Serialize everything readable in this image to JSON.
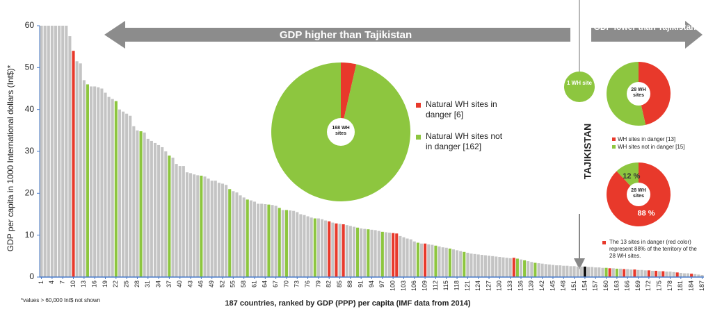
{
  "chart_data": [
    {
      "type": "bar",
      "y_label": "GDP per capita in 1000 International dollars (Int$)*",
      "x_label": "187 countries, ranked by GDP (PPP) per capita (IMF data from 2014)",
      "footnote": "*values > 60,000 Int$ not shown",
      "arrow_left_label": "GDP higher than Tajikistan",
      "arrow_right_label": "GDP lower than Tajikistan",
      "marker_label": "TAJIKISTAN",
      "site_label": "1 WH site",
      "site_color": "#8dc63f",
      "x": [
        1,
        2,
        3,
        4,
        5,
        6,
        7,
        8,
        9,
        10,
        11,
        12,
        13,
        14,
        15,
        16,
        17,
        18,
        19,
        20,
        21,
        22,
        23,
        24,
        25,
        26,
        27,
        28,
        29,
        30,
        31,
        32,
        33,
        34,
        35,
        36,
        37,
        38,
        39,
        40,
        41,
        42,
        43,
        44,
        45,
        46,
        47,
        48,
        49,
        50,
        51,
        52,
        53,
        54,
        55,
        56,
        57,
        58,
        59,
        60,
        61,
        62,
        63,
        64,
        65,
        66,
        67,
        68,
        69,
        70,
        71,
        72,
        73,
        74,
        75,
        76,
        77,
        78,
        79,
        80,
        81,
        82,
        83,
        84,
        85,
        86,
        87,
        88,
        89,
        90,
        91,
        92,
        93,
        94,
        95,
        96,
        97,
        98,
        99,
        100,
        101,
        102,
        103,
        104,
        105,
        106,
        107,
        108,
        109,
        110,
        111,
        112,
        113,
        114,
        115,
        116,
        117,
        118,
        119,
        120,
        121,
        122,
        123,
        124,
        125,
        126,
        127,
        128,
        129,
        130,
        131,
        132,
        133,
        134,
        135,
        136,
        137,
        138,
        139,
        140,
        141,
        142,
        143,
        144,
        145,
        146,
        147,
        148,
        149,
        150,
        151,
        152,
        153,
        154,
        155,
        156,
        157,
        158,
        159,
        160,
        161,
        162,
        163,
        164,
        165,
        166,
        167,
        168,
        169,
        170,
        171,
        172,
        173,
        174,
        175,
        176,
        177,
        178,
        179,
        180,
        181,
        182,
        183,
        184,
        185,
        186,
        187
      ],
      "values": [
        60,
        60,
        60,
        60,
        60,
        60,
        60,
        60,
        57.5,
        54,
        51.5,
        51,
        47,
        46,
        45.5,
        45.5,
        45.3,
        45,
        44,
        43,
        42.5,
        42,
        40,
        39.5,
        39,
        38.5,
        36,
        35,
        34.8,
        34.5,
        33,
        32.5,
        32,
        31.5,
        31,
        30,
        29,
        28.5,
        27,
        26.5,
        26.5,
        25,
        24.8,
        24.5,
        24.3,
        24.2,
        24,
        23.5,
        23,
        23,
        22.5,
        22.3,
        22,
        21,
        20.5,
        20.2,
        19.5,
        19,
        18.5,
        18.3,
        18,
        17.5,
        17.5,
        17.4,
        17.3,
        17.2,
        17,
        16.5,
        16,
        16,
        15.9,
        15.8,
        15.5,
        15,
        14.8,
        14.5,
        14.2,
        14,
        14,
        13.8,
        13.5,
        13.3,
        13,
        12.8,
        12.7,
        12.6,
        12.4,
        12.2,
        12,
        11.8,
        11.6,
        11.5,
        11.4,
        11.3,
        11.2,
        11,
        10.8,
        10.7,
        10.6,
        10.5,
        10.4,
        9.8,
        9.5,
        9.2,
        9,
        8.5,
        8.2,
        8,
        8,
        7.8,
        7.7,
        7.5,
        7.3,
        7.1,
        7,
        6.8,
        6.6,
        6.4,
        6.2,
        6,
        5.8,
        5.6,
        5.5,
        5.4,
        5.3,
        5.2,
        5.1,
        5,
        4.9,
        4.8,
        4.7,
        4.6,
        4.5,
        4.6,
        4.4,
        4.2,
        4,
        3.8,
        3.6,
        3.4,
        3.3,
        3.2,
        3.1,
        3,
        2.9,
        2.8,
        2.8,
        2.7,
        2.7,
        2.6,
        2.6,
        2.5,
        2.5,
        2.5,
        2.4,
        2.4,
        2.3,
        2.3,
        2.2,
        2.2,
        2.1,
        2.1,
        2,
        2,
        1.9,
        1.9,
        1.8,
        1.8,
        1.7,
        1.7,
        1.6,
        1.6,
        1.5,
        1.5,
        1.4,
        1.4,
        1.3,
        1.3,
        1.2,
        1.1,
        1,
        0.9,
        0.9,
        0.8,
        0.7,
        0.6,
        0.5
      ],
      "color": "#c4c4c4",
      "point_colors": {
        "10": "#e8392b",
        "14": "#8dc63f",
        "22": "#8dc63f",
        "29": "#8dc63f",
        "37": "#8dc63f",
        "46": "#8dc63f",
        "54": "#8dc63f",
        "59": "#8dc63f",
        "65": "#8dc63f",
        "68": "#8dc63f",
        "70": "#8dc63f",
        "78": "#8dc63f",
        "82": "#e8392b",
        "84": "#e8392b",
        "86": "#e8392b",
        "90": "#8dc63f",
        "93": "#8dc63f",
        "97": "#8dc63f",
        "100": "#e8392b",
        "101": "#e8392b",
        "107": "#8dc63f",
        "109": "#e8392b",
        "112": "#8dc63f",
        "116": "#8dc63f",
        "120": "#8dc63f",
        "134": "#e8392b",
        "135": "#8dc63f",
        "137": "#8dc63f",
        "140": "#8dc63f",
        "154": "#111111",
        "160": "#8dc63f",
        "161": "#e8392b",
        "163": "#8dc63f",
        "165": "#e8392b",
        "168": "#e8392b",
        "172": "#e8392b",
        "174": "#e8392b",
        "176": "#e8392b",
        "180": "#e8392b",
        "184": "#e8392b"
      },
      "xlim": [
        0.5,
        187.5
      ],
      "xticks": [
        1,
        4,
        7,
        10,
        13,
        16,
        19,
        22,
        25,
        28,
        31,
        34,
        37,
        40,
        43,
        46,
        49,
        52,
        55,
        58,
        61,
        64,
        67,
        70,
        73,
        76,
        79,
        82,
        85,
        88,
        91,
        94,
        97,
        100,
        103,
        106,
        109,
        112,
        115,
        118,
        121,
        124,
        127,
        130,
        133,
        136,
        139,
        142,
        145,
        148,
        151,
        154,
        157,
        160,
        163,
        166,
        169,
        172,
        175,
        178,
        181,
        184,
        187
      ],
      "ylim": [
        0,
        60
      ],
      "yticks": [
        0,
        10,
        20,
        30,
        40,
        50,
        60
      ]
    },
    {
      "type": "pie",
      "center_label": "168 WH sites",
      "labels": [
        "Natural WH sites in danger [6]",
        "Natural WH sites not in danger [162]"
      ],
      "values": [
        6,
        162
      ],
      "colors": [
        "#e8392b",
        "#8dc63f"
      ]
    },
    {
      "type": "pie",
      "center_label": "28 WH sites",
      "labels": [
        "WH sites in danger [13]",
        "WH sites not in danger [15]"
      ],
      "values": [
        13,
        15
      ],
      "colors": [
        "#e8392b",
        "#8dc63f"
      ]
    },
    {
      "type": "pie",
      "center_label": "28 WH sites",
      "values": [
        88,
        12
      ],
      "value_labels": [
        "88 %",
        "12 %"
      ],
      "colors": [
        "#e8392b",
        "#8dc63f"
      ],
      "note": "The 13 sites in danger (red color) represent 88% of the territory of the 28 WH sites."
    }
  ]
}
